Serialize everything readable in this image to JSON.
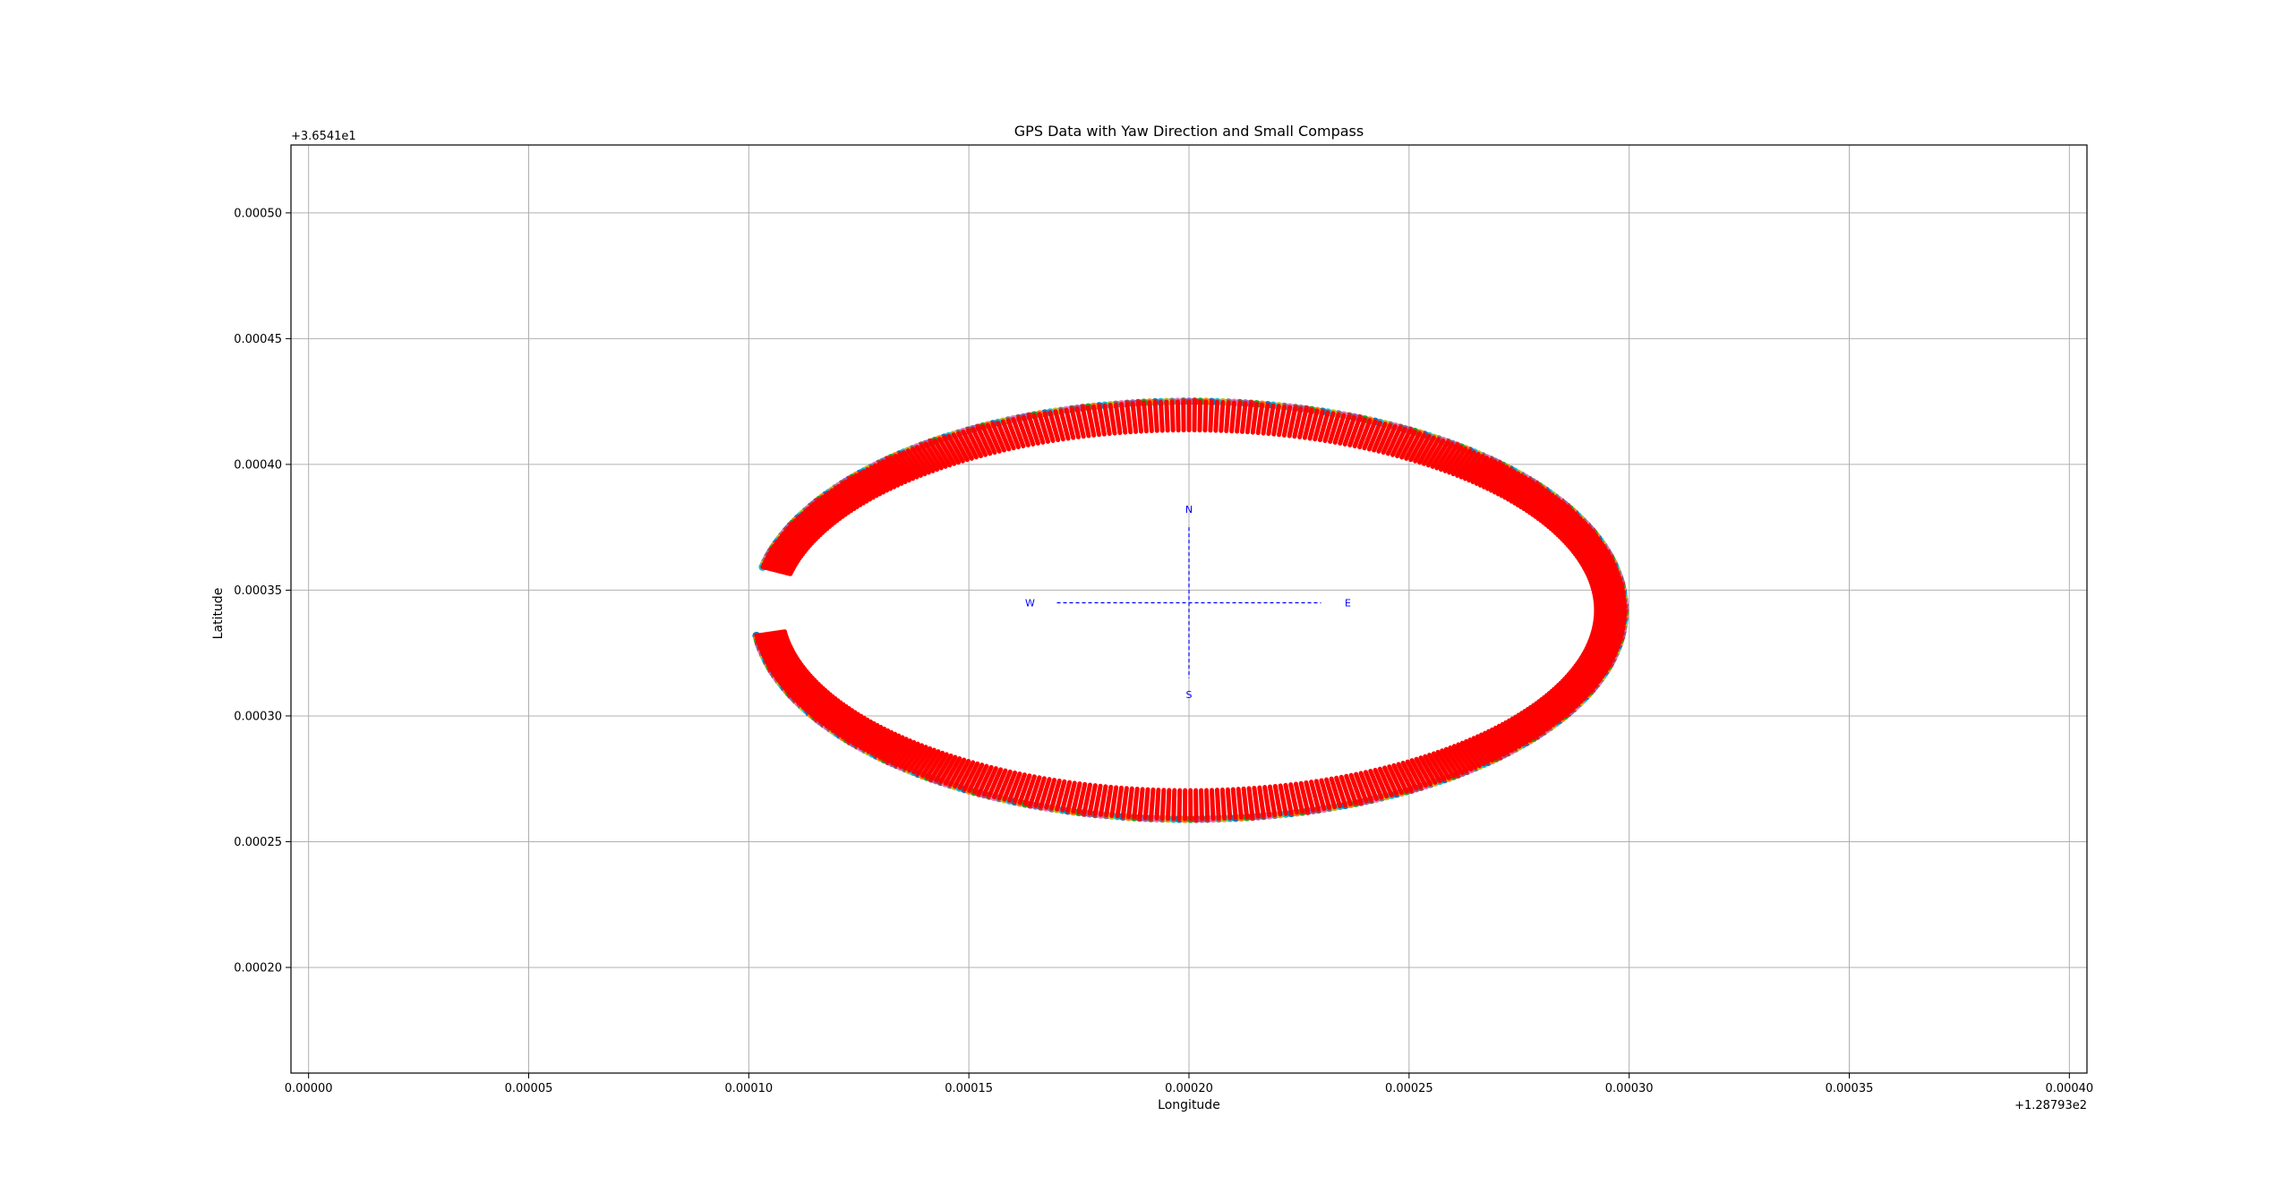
{
  "chart_data": {
    "type": "scatter",
    "title": "GPS Data with Yaw Direction and Small Compass",
    "xlabel": "Longitude",
    "ylabel": "Latitude",
    "x_offset_label": "+1.28793e2",
    "y_offset_label": "+3.6541e1",
    "xlim": [
      -4e-06,
      0.000404
    ],
    "ylim": [
      0.000158,
      0.000527
    ],
    "xticks": [
      0.0,
      5e-05,
      0.0001,
      0.00015,
      0.0002,
      0.00025,
      0.0003,
      0.00035,
      0.0004
    ],
    "xtick_labels": [
      "0.00000",
      "0.00005",
      "0.00010",
      "0.00015",
      "0.00020",
      "0.00025",
      "0.00030",
      "0.00035",
      "0.00040"
    ],
    "yticks": [
      0.0002,
      0.00025,
      0.0003,
      0.00035,
      0.0004,
      0.00045,
      0.0005
    ],
    "ytick_labels": [
      "0.00020",
      "0.00025",
      "0.00030",
      "0.00035",
      "0.00040",
      "0.00045",
      "0.00050"
    ],
    "grid": true,
    "trajectory": {
      "shape": "ellipse",
      "center_x": 0.0002,
      "center_y": 0.000342,
      "radius_x": 9.9e-05,
      "radius_y": 8.3e-05,
      "start_angle_deg": 187,
      "end_angle_deg": 528,
      "point_count": 460,
      "point_colors": [
        "#1f77b4",
        "#ff7f0e",
        "#2ca02c",
        "#d62728",
        "#9467bd",
        "#8c564b",
        "#e377c2",
        "#7f7f7f",
        "#bcbd22",
        "#17becf"
      ],
      "yaw_arrow_color": "#ff0000"
    },
    "compass": {
      "center_x": 0.0002,
      "center_y": 0.000345,
      "half_length_x": 3e-05,
      "half_length_y": 3e-05,
      "color": "#0000ff",
      "labels": {
        "north": "N",
        "south": "S",
        "east": "E",
        "west": "W"
      }
    }
  }
}
